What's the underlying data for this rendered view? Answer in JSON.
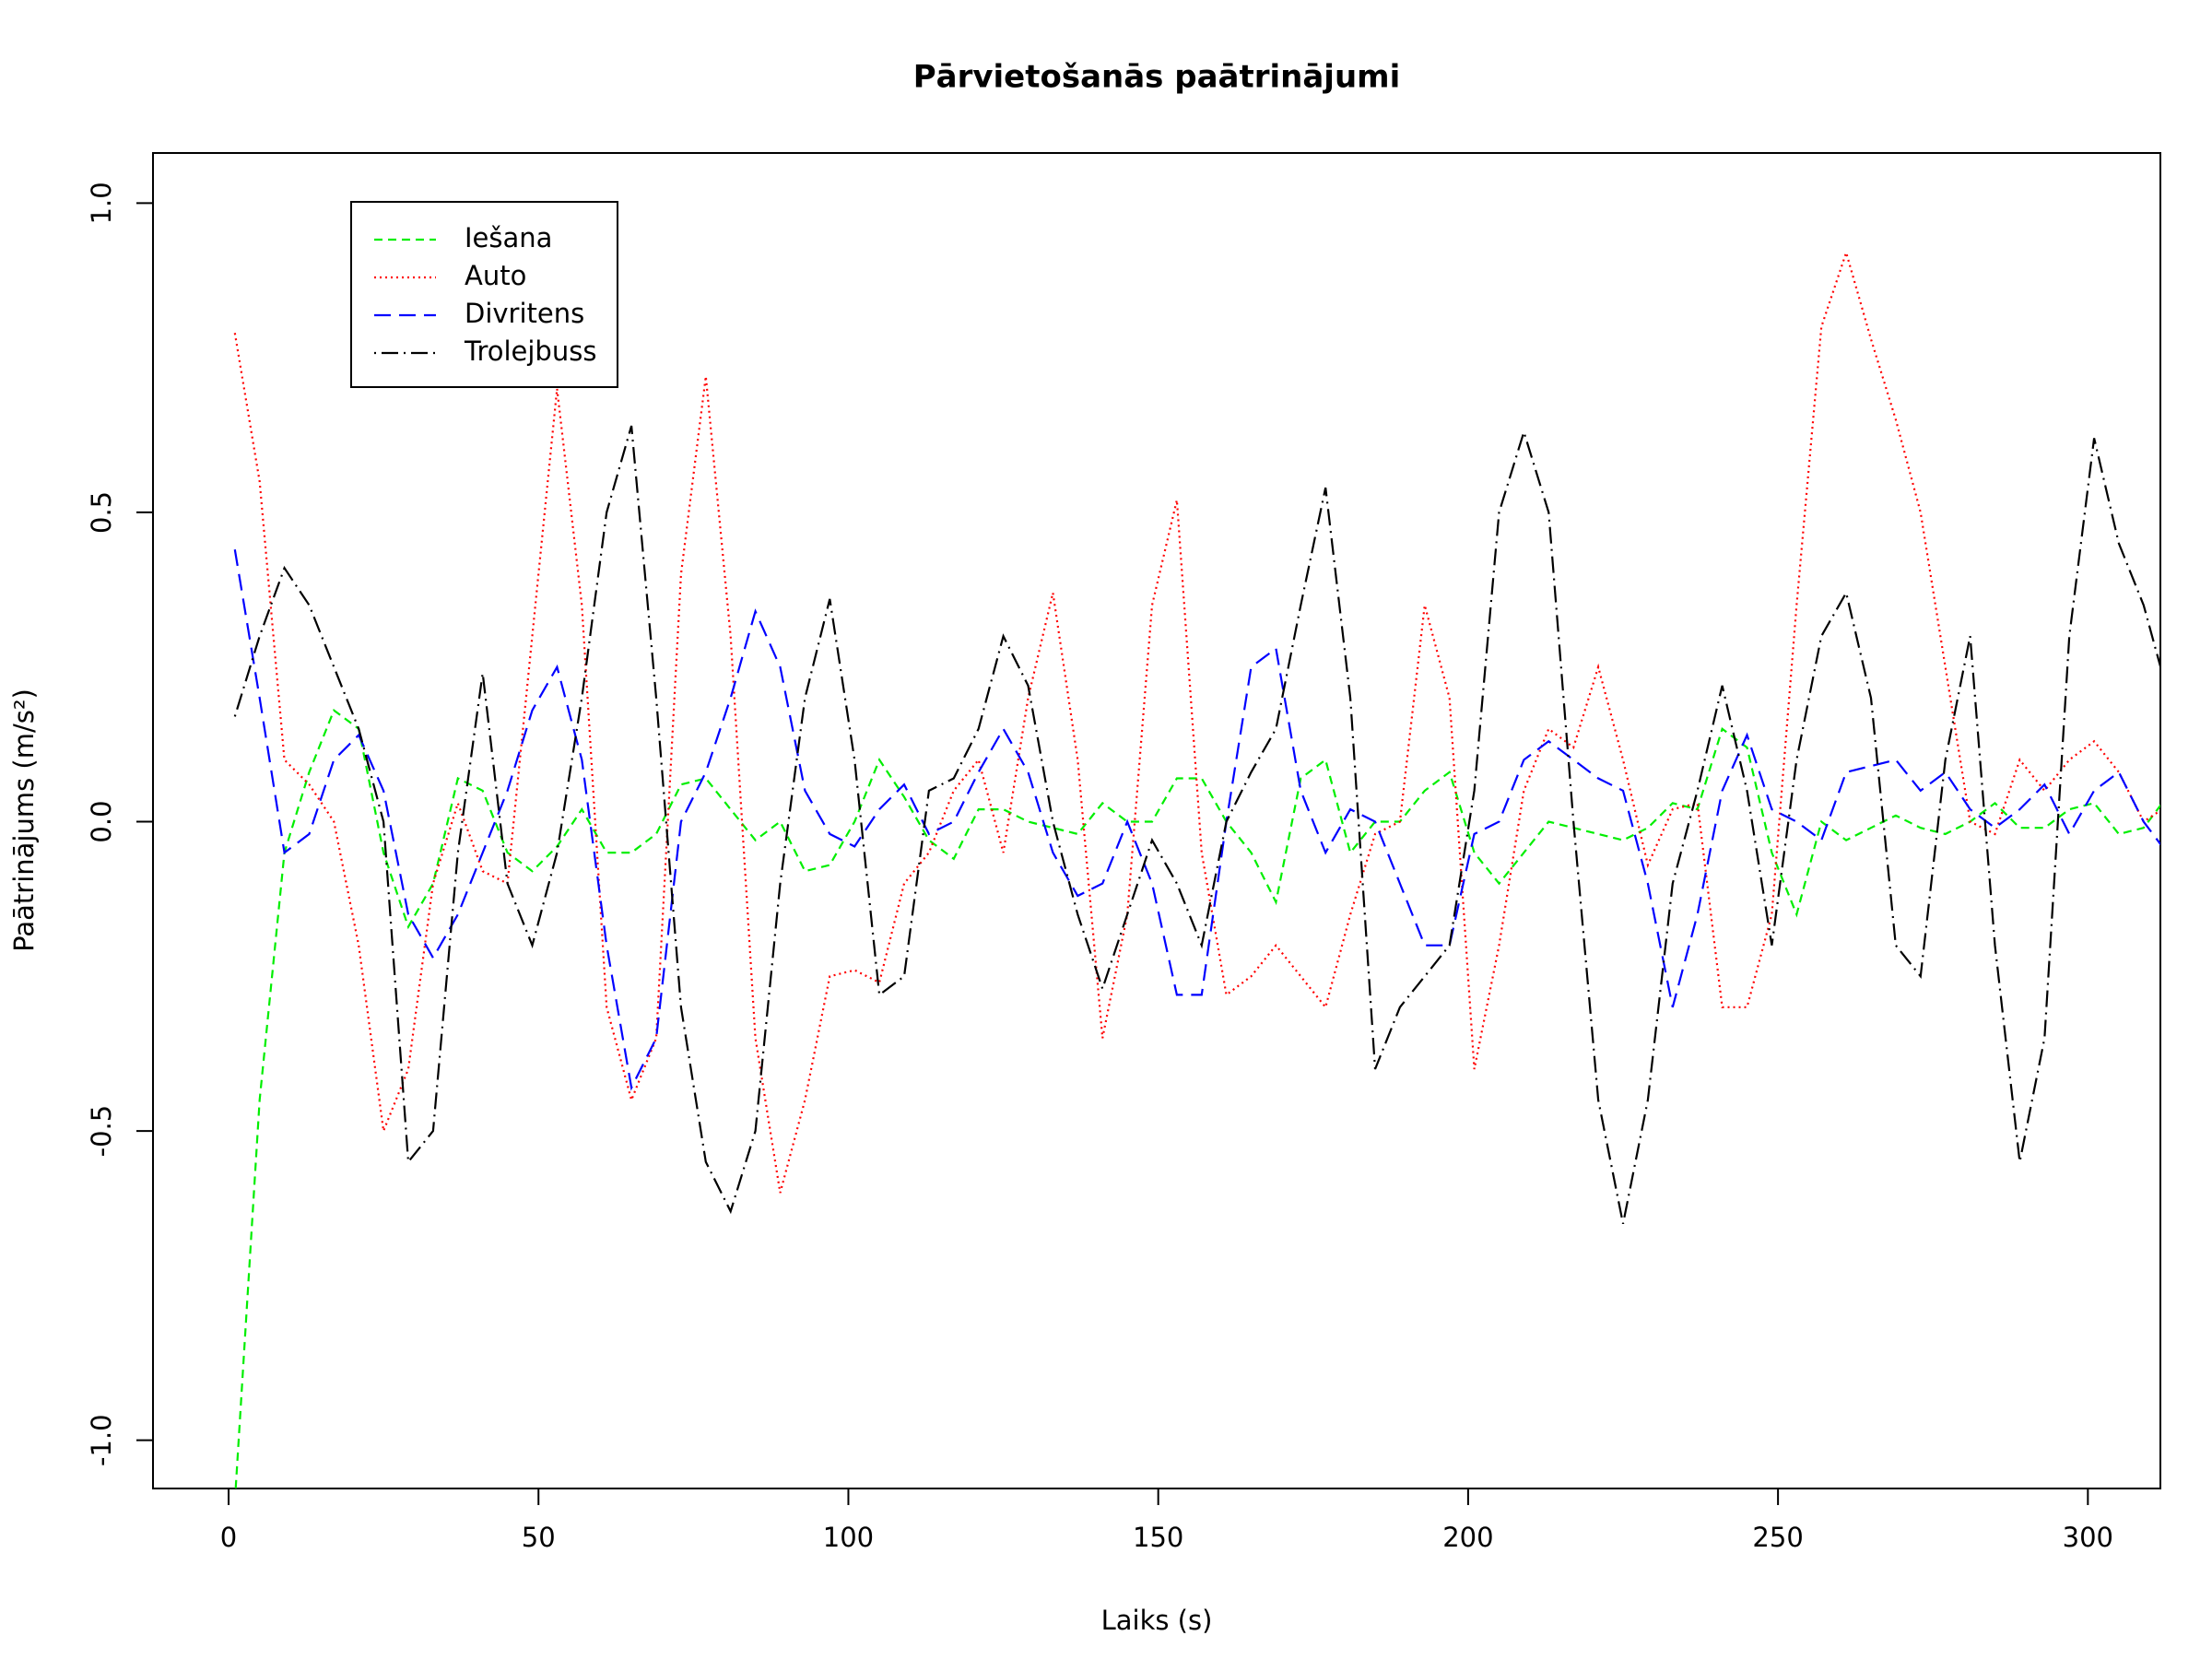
{
  "chart_data": {
    "type": "line",
    "title": "Pārvietošanās paātrinājumi",
    "x_label": "Laiks (s)",
    "y_label": "Paātrinājums (m/s²)",
    "xlim": [
      -12.2,
      311.7
    ],
    "ylim": [
      -1.078,
      1.081
    ],
    "xticks": [
      0,
      50,
      100,
      150,
      200,
      250,
      300
    ],
    "yticks": [
      {
        "value": -1,
        "label": "-1.0"
      },
      -0.5,
      {
        "value": 0,
        "label": "0.0"
      },
      0.5,
      {
        "value": 1,
        "label": "1.0"
      }
    ],
    "legend": "top-left",
    "x": [
      1,
      5,
      9,
      13,
      17,
      21,
      25,
      29,
      33,
      37,
      41,
      45,
      49,
      53,
      57,
      61,
      65,
      69,
      73,
      77,
      81,
      85,
      89,
      93,
      97,
      101,
      105,
      109,
      113,
      117,
      121,
      125,
      129,
      133,
      137,
      141,
      145,
      149,
      153,
      157,
      161,
      165,
      169,
      173,
      177,
      181,
      185,
      189,
      193,
      197,
      201,
      205,
      209,
      213,
      217,
      221,
      225,
      229,
      233,
      237,
      241,
      245,
      249,
      253,
      257,
      261,
      265,
      269,
      273,
      277,
      281,
      285,
      289,
      293,
      297,
      301,
      305,
      309,
      312
    ],
    "series": [
      {
        "name": "Iešana",
        "color": "#00ee00",
        "dash": "dashed",
        "values": [
          -1.1,
          -0.45,
          -0.05,
          0.08,
          0.18,
          0.15,
          -0.05,
          -0.17,
          -0.1,
          0.07,
          0.05,
          -0.05,
          -0.08,
          -0.04,
          0.02,
          -0.05,
          -0.05,
          -0.02,
          0.06,
          0.07,
          0.02,
          -0.03,
          0.0,
          -0.08,
          -0.07,
          0.0,
          0.1,
          0.04,
          -0.03,
          -0.06,
          0.02,
          0.02,
          0.0,
          -0.01,
          -0.02,
          0.03,
          0.0,
          0.0,
          0.07,
          0.07,
          0.0,
          -0.05,
          -0.13,
          0.07,
          0.1,
          -0.05,
          0.0,
          0.0,
          0.05,
          0.08,
          -0.05,
          -0.1,
          -0.05,
          0.0,
          -0.01,
          -0.02,
          -0.03,
          -0.01,
          0.03,
          0.02,
          0.15,
          0.12,
          -0.05,
          -0.15,
          0.0,
          -0.03,
          -0.01,
          0.01,
          -0.01,
          -0.02,
          0.0,
          0.03,
          -0.01,
          -0.01,
          0.02,
          0.03,
          -0.02,
          -0.01,
          0.03
        ]
      },
      {
        "name": "Auto",
        "color": "#ff0000",
        "dash": "dotted",
        "values": [
          0.79,
          0.55,
          0.1,
          0.06,
          0.0,
          -0.2,
          -0.5,
          -0.4,
          -0.1,
          0.03,
          -0.08,
          -0.1,
          0.3,
          0.7,
          0.35,
          -0.3,
          -0.45,
          -0.35,
          0.4,
          0.72,
          0.3,
          -0.35,
          -0.6,
          -0.45,
          -0.25,
          -0.24,
          -0.26,
          -0.1,
          -0.05,
          0.05,
          0.1,
          -0.05,
          0.2,
          0.37,
          0.1,
          -0.35,
          -0.15,
          0.35,
          0.52,
          -0.05,
          -0.28,
          -0.25,
          -0.2,
          -0.25,
          -0.3,
          -0.15,
          -0.02,
          0.0,
          0.35,
          0.2,
          -0.4,
          -0.2,
          0.05,
          0.15,
          0.12,
          0.25,
          0.1,
          -0.07,
          0.02,
          0.03,
          -0.3,
          -0.3,
          -0.15,
          0.35,
          0.8,
          0.92,
          0.78,
          0.65,
          0.5,
          0.25,
          0.0,
          -0.02,
          0.1,
          0.05,
          0.1,
          0.13,
          0.08,
          0.0,
          0.02
        ]
      },
      {
        "name": "Divritens",
        "color": "#0000ff",
        "dash": "longdash",
        "values": [
          0.44,
          0.2,
          -0.05,
          -0.02,
          0.1,
          0.14,
          0.05,
          -0.15,
          -0.22,
          -0.15,
          -0.05,
          0.05,
          0.18,
          0.25,
          0.1,
          -0.2,
          -0.43,
          -0.35,
          0.0,
          0.08,
          0.2,
          0.34,
          0.25,
          0.05,
          -0.02,
          -0.04,
          0.02,
          0.06,
          -0.02,
          0.0,
          0.08,
          0.15,
          0.08,
          -0.05,
          -0.12,
          -0.1,
          0.0,
          -0.1,
          -0.28,
          -0.28,
          0.0,
          0.25,
          0.28,
          0.05,
          -0.05,
          0.02,
          0.0,
          -0.1,
          -0.2,
          -0.2,
          -0.02,
          0.0,
          0.1,
          0.13,
          0.1,
          0.07,
          0.05,
          -0.1,
          -0.3,
          -0.15,
          0.05,
          0.14,
          0.02,
          0.0,
          -0.03,
          0.08,
          0.09,
          0.1,
          0.05,
          0.08,
          0.02,
          -0.01,
          0.02,
          0.06,
          -0.02,
          0.05,
          0.08,
          0.0,
          -0.04
        ]
      },
      {
        "name": "Trolejbuss",
        "color": "#000000",
        "dash": "dotdash",
        "values": [
          0.17,
          0.3,
          0.41,
          0.35,
          0.25,
          0.15,
          0.0,
          -0.55,
          -0.5,
          -0.05,
          0.24,
          -0.1,
          -0.2,
          -0.05,
          0.2,
          0.5,
          0.64,
          0.2,
          -0.3,
          -0.55,
          -0.63,
          -0.5,
          -0.1,
          0.2,
          0.36,
          0.1,
          -0.28,
          -0.25,
          0.05,
          0.07,
          0.15,
          0.3,
          0.22,
          0.0,
          -0.15,
          -0.27,
          -0.15,
          -0.03,
          -0.1,
          -0.2,
          0.0,
          0.08,
          0.15,
          0.35,
          0.54,
          0.2,
          -0.4,
          -0.3,
          -0.25,
          -0.2,
          0.05,
          0.5,
          0.63,
          0.5,
          0.0,
          -0.45,
          -0.65,
          -0.45,
          -0.1,
          0.05,
          0.22,
          0.05,
          -0.2,
          0.1,
          0.3,
          0.37,
          0.2,
          -0.2,
          -0.25,
          0.1,
          0.3,
          -0.2,
          -0.55,
          -0.35,
          0.3,
          0.62,
          0.45,
          0.35,
          0.24
        ]
      }
    ]
  }
}
